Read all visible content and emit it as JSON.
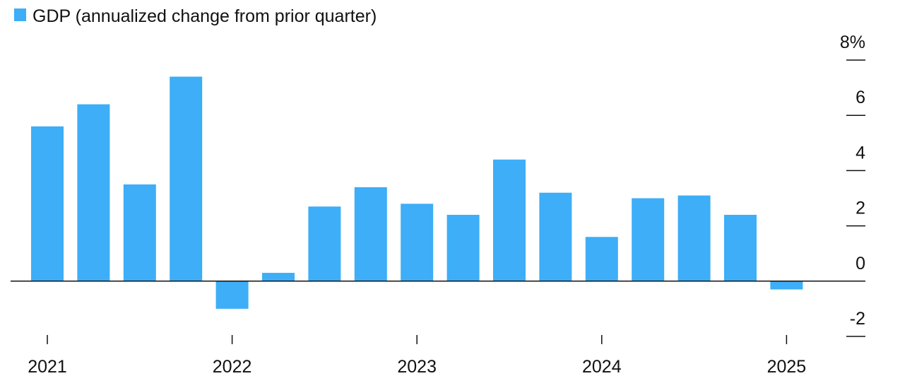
{
  "chart_data": {
    "type": "bar",
    "categories": [
      "2021",
      null,
      null,
      null,
      "2022",
      null,
      null,
      null,
      "2023",
      null,
      null,
      null,
      "2024",
      null,
      null,
      null,
      "2025"
    ],
    "series": [
      {
        "name": "GDP (annualized change from prior quarter)",
        "color": "#3daef7",
        "values": [
          5.6,
          6.4,
          3.5,
          7.4,
          -1.0,
          0.3,
          2.7,
          3.4,
          2.8,
          2.4,
          4.4,
          3.2,
          1.6,
          3.0,
          3.1,
          2.4,
          -0.3
        ]
      }
    ],
    "ylim": [
      -2,
      8
    ],
    "yticks": [
      {
        "value": 8,
        "label": "8%"
      },
      6,
      4,
      2,
      0,
      -2
    ],
    "legend": "top-left"
  }
}
